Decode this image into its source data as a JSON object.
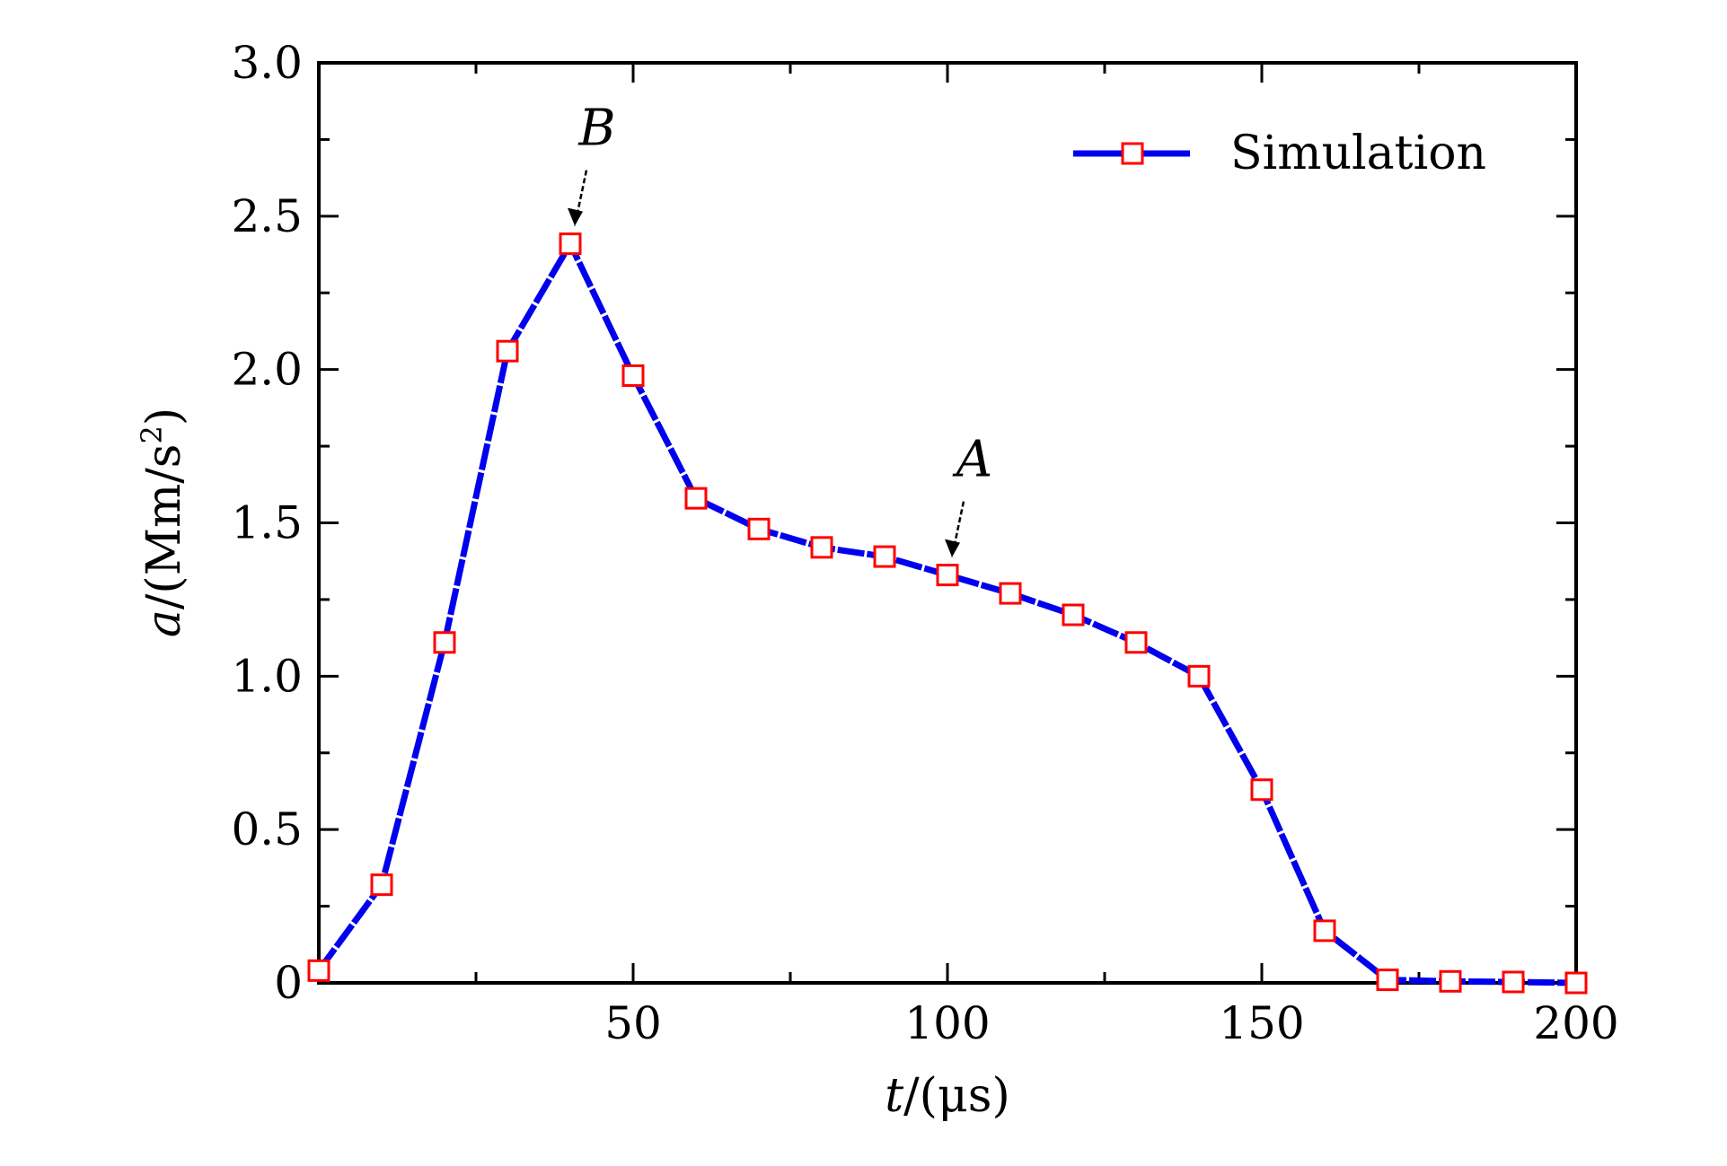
{
  "chart_data": {
    "type": "line",
    "xlabel_var": "t",
    "xlabel_unit": "/(μs)",
    "ylabel_var": "a",
    "ylabel_unit": "/(Mm/s",
    "ylabel_sup": "2",
    "ylabel_close": ")",
    "xlim": [
      0,
      200
    ],
    "ylim": [
      0,
      3.0
    ],
    "x_ticks": [
      50,
      100,
      150,
      200
    ],
    "x_tick_labels": [
      "50",
      "100",
      "150",
      "200"
    ],
    "y_ticks": [
      0,
      0.5,
      1.0,
      1.5,
      2.0,
      2.5,
      3.0
    ],
    "y_tick_labels": [
      "0",
      "0.5",
      "1.0",
      "1.5",
      "2.0",
      "2.5",
      "3.0"
    ],
    "grid": false,
    "legend_position": "top-right",
    "series": [
      {
        "name": "Simulation",
        "line_color": "#0000ee",
        "marker_color": "#ff0000",
        "marker": "square",
        "x": [
          0,
          10,
          20,
          30,
          40,
          50,
          60,
          70,
          80,
          90,
          100,
          110,
          120,
          130,
          140,
          150,
          160,
          170,
          180,
          190,
          200
        ],
        "y": [
          0.04,
          0.32,
          1.11,
          2.06,
          2.41,
          1.98,
          1.58,
          1.48,
          1.42,
          1.39,
          1.33,
          1.27,
          1.2,
          1.11,
          1.0,
          0.63,
          0.17,
          0.01,
          0.005,
          0.003,
          0.0
        ]
      }
    ],
    "annotations": [
      {
        "text": "B",
        "x": 40,
        "y": 2.41
      },
      {
        "text": "A",
        "x": 100,
        "y": 1.33
      }
    ]
  }
}
